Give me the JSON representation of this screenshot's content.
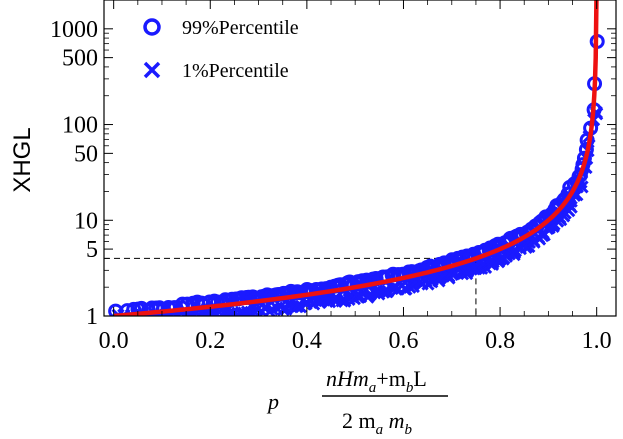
{
  "chart_data": {
    "type": "scatter",
    "xlabel": {
      "prefix": "p",
      "numerator": "nHm",
      "numerator_sub_a": "a",
      "numerator_plus": "+m",
      "numerator_sub_b": "b",
      "numerator_close": "L",
      "denominator": "2 m",
      "denominator_sub_a": "a",
      "denominator_mid": " m",
      "denominator_sub_b": "b"
    },
    "ylabel": "XHGL",
    "x_ticks": [
      "0.0",
      "0.2",
      "0.4",
      "0.6",
      "0.8",
      "1.0"
    ],
    "x_tick_values": [
      0.0,
      0.2,
      0.4,
      0.6,
      0.8,
      1.0
    ],
    "y_major_ticks": [
      1,
      5,
      10,
      50,
      100,
      500,
      1000
    ],
    "y_tick_labels": [
      "1",
      "5",
      "10",
      "50",
      "100",
      "500",
      "1000"
    ],
    "xlim": [
      -0.02,
      1.04
    ],
    "ylim": [
      1,
      2000
    ],
    "y_scale": "log",
    "grid": false,
    "legend_placement": "top-left",
    "colors": {
      "markers": "#1a1aff",
      "curve": "#ee1111",
      "guide": "#000000"
    },
    "series": [
      {
        "name": "99%Percentile",
        "marker": "circle"
      },
      {
        "name": "1%Percentile",
        "marker": "cross"
      }
    ],
    "guide_point": {
      "x": 0.75,
      "y": 4
    }
  }
}
